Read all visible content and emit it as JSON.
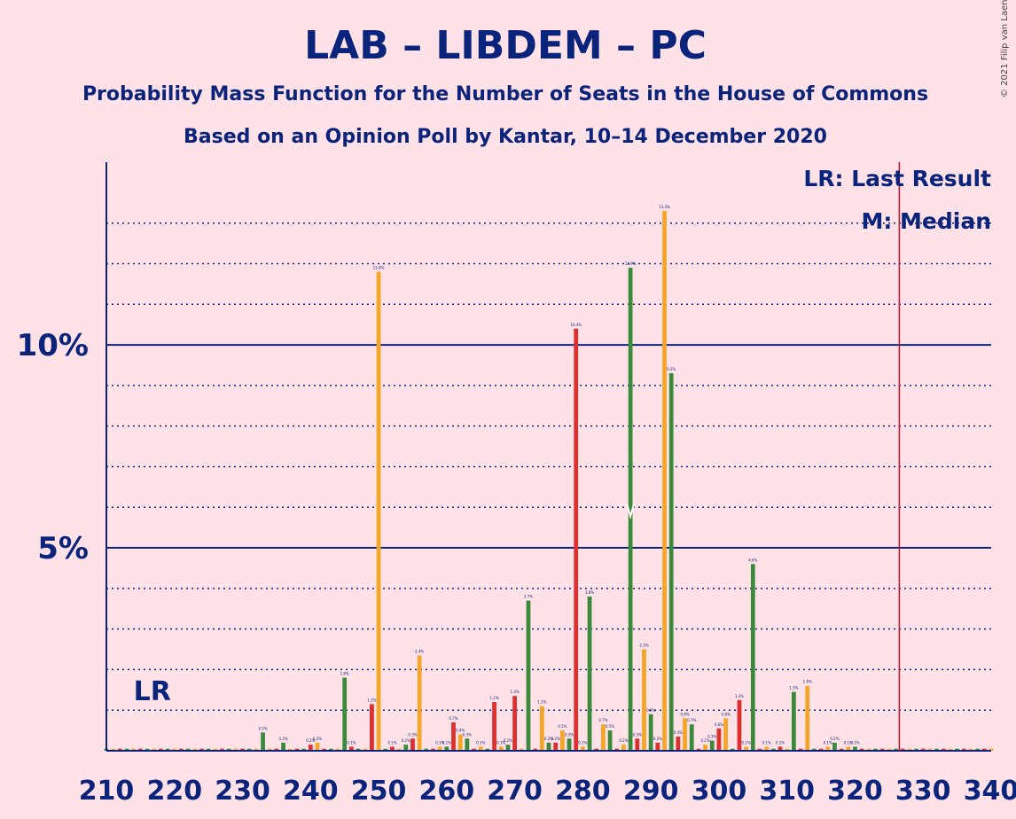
{
  "chart_data": {
    "type": "bar",
    "title": "LAB – LIBDEM – PC",
    "subtitle": "Probability Mass Function for the Number of Seats in the House of Commons",
    "subtitle2": "Based on an Opinion Poll by Kantar, 10–14 December 2020",
    "credit": "© 2021 Filip van Laenen",
    "xlim": [
      210,
      340
    ],
    "ylim": [
      0,
      14.5
    ],
    "x_ticks": [
      "210",
      "220",
      "230",
      "240",
      "250",
      "260",
      "270",
      "280",
      "290",
      "300",
      "310",
      "320",
      "330",
      "340"
    ],
    "y_ticks": [
      {
        "value": 5,
        "label": "5%"
      },
      {
        "value": 10,
        "label": "10%"
      }
    ],
    "minor_gridlines": [
      1,
      2,
      3,
      4,
      6,
      7,
      8,
      9,
      11,
      12,
      13
    ],
    "legend": {
      "last_result": "LR: Last Result",
      "median": "M: Median"
    },
    "last_result": {
      "seat": 217,
      "label": "LR"
    },
    "median": {
      "seat": 287
    },
    "majority_seat": 326,
    "colors": {
      "green": "#3b8a3b",
      "orange": "#f5a629",
      "red": "#dc2f2f",
      "axis": "#0a237b",
      "majority": "#c8102e"
    },
    "series_values": [
      [
        210,
        0.05,
        "green"
      ],
      [
        211,
        0.05,
        "orange"
      ],
      [
        212,
        0.05,
        "red"
      ],
      [
        213,
        0.05,
        "green"
      ],
      [
        214,
        0.05,
        "orange"
      ],
      [
        215,
        0.05,
        "red"
      ],
      [
        216,
        0.05,
        "green"
      ],
      [
        217,
        0.05,
        "orange"
      ],
      [
        218,
        0.05,
        "red"
      ],
      [
        219,
        0.05,
        "green"
      ],
      [
        220,
        0.05,
        "orange"
      ],
      [
        221,
        0.05,
        "red"
      ],
      [
        222,
        0.05,
        "green"
      ],
      [
        223,
        0.05,
        "orange"
      ],
      [
        224,
        0.05,
        "red"
      ],
      [
        225,
        0.05,
        "green"
      ],
      [
        226,
        0.05,
        "orange"
      ],
      [
        227,
        0.05,
        "red"
      ],
      [
        228,
        0.05,
        "green"
      ],
      [
        229,
        0.05,
        "orange"
      ],
      [
        230,
        0.05,
        "red"
      ],
      [
        231,
        0.05,
        "green"
      ],
      [
        232,
        0.05,
        "orange"
      ],
      [
        233,
        0.45,
        "green"
      ],
      [
        234,
        0.05,
        "orange"
      ],
      [
        235,
        0.05,
        "red"
      ],
      [
        236,
        0.2,
        "green"
      ],
      [
        237,
        0.05,
        "orange"
      ],
      [
        238,
        0.05,
        "red"
      ],
      [
        239,
        0.05,
        "green"
      ],
      [
        240,
        0.15,
        "red"
      ],
      [
        241,
        0.2,
        "orange"
      ],
      [
        242,
        0.05,
        "red"
      ],
      [
        243,
        0.05,
        "green"
      ],
      [
        244,
        0.05,
        "orange"
      ],
      [
        245,
        1.8,
        "green"
      ],
      [
        246,
        0.1,
        "red"
      ],
      [
        247,
        0.05,
        "green"
      ],
      [
        248,
        0.05,
        "orange"
      ],
      [
        249,
        1.15,
        "red"
      ],
      [
        250,
        11.8,
        "orange"
      ],
      [
        251,
        0.05,
        "green"
      ],
      [
        252,
        0.1,
        "red"
      ],
      [
        253,
        0.05,
        "orange"
      ],
      [
        254,
        0.15,
        "green"
      ],
      [
        255,
        0.3,
        "red"
      ],
      [
        256,
        2.35,
        "orange"
      ],
      [
        257,
        0.05,
        "green"
      ],
      [
        258,
        0.05,
        "red"
      ],
      [
        259,
        0.1,
        "orange"
      ],
      [
        260,
        0.1,
        "green"
      ],
      [
        261,
        0.7,
        "red"
      ],
      [
        262,
        0.4,
        "orange"
      ],
      [
        263,
        0.3,
        "green"
      ],
      [
        264,
        0.05,
        "red"
      ],
      [
        265,
        0.1,
        "orange"
      ],
      [
        266,
        0.05,
        "green"
      ],
      [
        267,
        1.2,
        "red"
      ],
      [
        268,
        0.1,
        "orange"
      ],
      [
        269,
        0.15,
        "green"
      ],
      [
        270,
        1.35,
        "red"
      ],
      [
        271,
        0.05,
        "orange"
      ],
      [
        272,
        3.7,
        "green"
      ],
      [
        273,
        0.05,
        "red"
      ],
      [
        274,
        1.1,
        "orange"
      ],
      [
        275,
        0.2,
        "green"
      ],
      [
        276,
        0.2,
        "red"
      ],
      [
        277,
        0.5,
        "orange"
      ],
      [
        278,
        0.3,
        "green"
      ],
      [
        279,
        10.4,
        "red"
      ],
      [
        280,
        0.1,
        "orange"
      ],
      [
        281,
        3.8,
        "green"
      ],
      [
        282,
        0.05,
        "red"
      ],
      [
        283,
        0.65,
        "orange"
      ],
      [
        284,
        0.5,
        "green"
      ],
      [
        285,
        0.05,
        "red"
      ],
      [
        286,
        0.15,
        "orange"
      ],
      [
        287,
        11.9,
        "green"
      ],
      [
        288,
        0.3,
        "red"
      ],
      [
        289,
        2.5,
        "orange"
      ],
      [
        290,
        0.9,
        "green"
      ],
      [
        291,
        0.2,
        "red"
      ],
      [
        292,
        13.3,
        "orange"
      ],
      [
        293,
        9.3,
        "green"
      ],
      [
        294,
        0.35,
        "red"
      ],
      [
        295,
        0.8,
        "orange"
      ],
      [
        296,
        0.65,
        "green"
      ],
      [
        297,
        0.05,
        "red"
      ],
      [
        298,
        0.15,
        "orange"
      ],
      [
        299,
        0.25,
        "green"
      ],
      [
        300,
        0.55,
        "red"
      ],
      [
        301,
        0.8,
        "orange"
      ],
      [
        302,
        0.05,
        "green"
      ],
      [
        303,
        1.25,
        "red"
      ],
      [
        304,
        0.1,
        "orange"
      ],
      [
        305,
        4.6,
        "green"
      ],
      [
        306,
        0.05,
        "red"
      ],
      [
        307,
        0.1,
        "orange"
      ],
      [
        308,
        0.05,
        "green"
      ],
      [
        309,
        0.1,
        "red"
      ],
      [
        310,
        0.05,
        "orange"
      ],
      [
        311,
        1.45,
        "green"
      ],
      [
        312,
        0.05,
        "red"
      ],
      [
        313,
        1.6,
        "orange"
      ],
      [
        314,
        0.05,
        "green"
      ],
      [
        315,
        0.05,
        "red"
      ],
      [
        316,
        0.1,
        "orange"
      ],
      [
        317,
        0.2,
        "green"
      ],
      [
        318,
        0.05,
        "red"
      ],
      [
        319,
        0.1,
        "orange"
      ],
      [
        320,
        0.1,
        "green"
      ],
      [
        321,
        0.05,
        "red"
      ],
      [
        322,
        0.05,
        "orange"
      ],
      [
        323,
        0.05,
        "green"
      ],
      [
        324,
        0.05,
        "red"
      ],
      [
        325,
        0.05,
        "orange"
      ],
      [
        326,
        0.05,
        "green"
      ],
      [
        327,
        0.05,
        "red"
      ],
      [
        328,
        0.05,
        "orange"
      ],
      [
        329,
        0.05,
        "green"
      ],
      [
        330,
        0.05,
        "red"
      ],
      [
        331,
        0.05,
        "orange"
      ],
      [
        332,
        0.05,
        "green"
      ],
      [
        333,
        0.05,
        "red"
      ],
      [
        334,
        0.05,
        "orange"
      ],
      [
        335,
        0.05,
        "green"
      ],
      [
        336,
        0.05,
        "red"
      ],
      [
        337,
        0.05,
        "orange"
      ],
      [
        338,
        0.05,
        "green"
      ],
      [
        339,
        0.05,
        "red"
      ],
      [
        340,
        0.05,
        "orange"
      ]
    ]
  }
}
